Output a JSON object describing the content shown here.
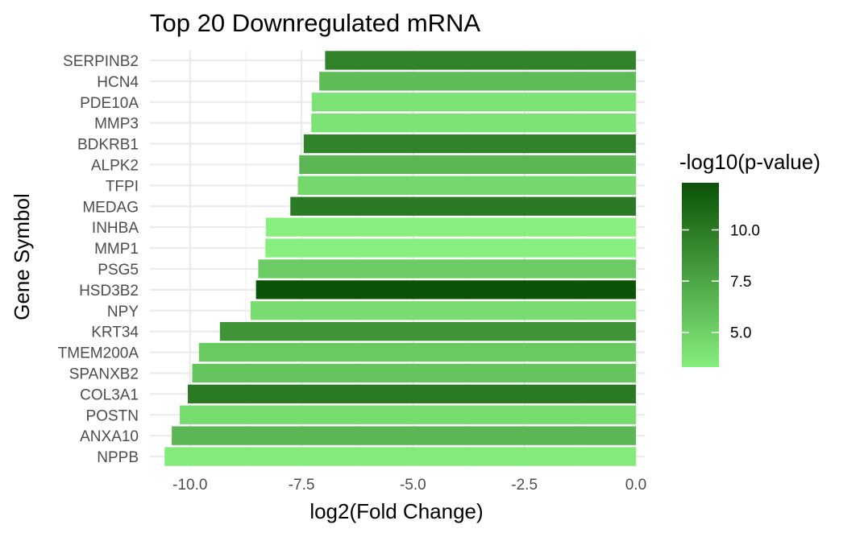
{
  "chart_data": {
    "type": "bar",
    "orientation": "horizontal",
    "title": "Top 20 Downregulated mRNA",
    "xlabel": "log2(Fold Change)",
    "ylabel": "Gene Symbol",
    "xlim": [
      -10.9,
      0.2
    ],
    "x_ticks": [
      -10.0,
      -7.5,
      -5.0,
      -2.5,
      0.0
    ],
    "x_tick_labels": [
      "-10.0",
      "-7.5",
      "-5.0",
      "-2.5",
      "0.0"
    ],
    "grid": true,
    "legend_position": "right",
    "categories": [
      "SERPINB2",
      "HCN4",
      "PDE10A",
      "MMP3",
      "BDKRB1",
      "ALPK2",
      "TFPI",
      "MEDAG",
      "INHBA",
      "MMP1",
      "PSG5",
      "HSD3B2",
      "NPY",
      "KRT34",
      "TMEM200A",
      "SPANXB2",
      "COL3A1",
      "POSTN",
      "ANXA10",
      "NPPB"
    ],
    "values": [
      -6.97,
      -7.1,
      -7.27,
      -7.28,
      -7.45,
      -7.55,
      -7.58,
      -7.75,
      -8.3,
      -8.31,
      -8.47,
      -8.52,
      -8.64,
      -9.33,
      -9.8,
      -9.95,
      -10.05,
      -10.23,
      -10.41,
      -10.57
    ],
    "color_values": [
      9.5,
      6.2,
      4.0,
      4.0,
      9.5,
      6.5,
      4.6,
      10.0,
      3.3,
      3.3,
      5.3,
      12.2,
      4.3,
      8.5,
      5.4,
      5.7,
      10.0,
      4.4,
      6.5,
      3.5
    ],
    "color_scale": {
      "title": "-log10(p-value)",
      "range": [
        3.3,
        12.3
      ],
      "ticks": [
        5.0,
        7.5,
        10.0
      ],
      "tick_labels": [
        "5.0",
        "7.5",
        "10.0"
      ],
      "low_color": "#86ef7d",
      "high_color": "#0b5106"
    }
  }
}
